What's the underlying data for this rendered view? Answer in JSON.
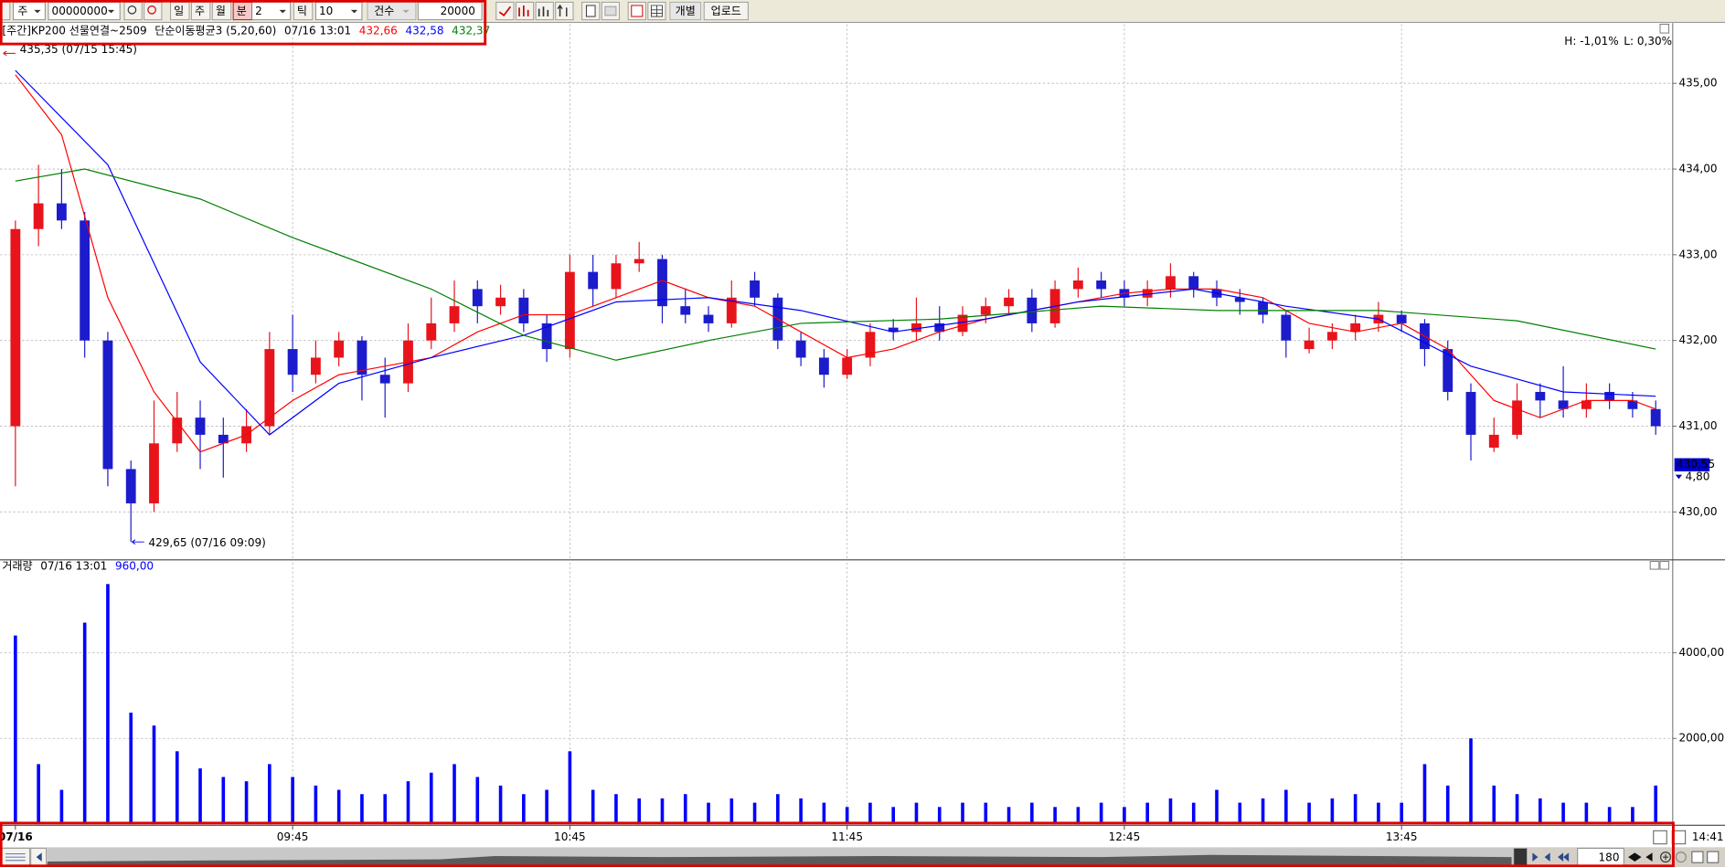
{
  "toolbar": {
    "market": "주",
    "code": "00000000",
    "periods": [
      "일",
      "주",
      "월",
      "분"
    ],
    "interval": 2,
    "tick_label": "틱",
    "tick_count": 10,
    "count_label": "건수",
    "count": 20000,
    "buttons": [
      "개별",
      "업로드"
    ]
  },
  "chart_data": [
    {
      "type": "candlestick",
      "title": "[주간]KP200 선물연결~2509",
      "indicator": "단순이동평균3 (5,20,60)",
      "time": "07/16 13:01",
      "categories": [
        "07/16",
        null,
        null,
        null,
        null,
        null,
        null,
        null,
        null,
        null,
        null,
        null,
        "09:45",
        null,
        null,
        null,
        null,
        null,
        null,
        null,
        null,
        null,
        null,
        null,
        "10:45",
        null,
        null,
        null,
        null,
        null,
        null,
        null,
        null,
        null,
        null,
        null,
        "11:45",
        null,
        null,
        null,
        null,
        null,
        null,
        null,
        null,
        null,
        null,
        null,
        "12:45",
        null,
        null,
        null,
        null,
        null,
        null,
        null,
        null,
        null,
        null,
        null,
        "13:45",
        null,
        null,
        null,
        null,
        null,
        null,
        null,
        null,
        null,
        null,
        null
      ],
      "ohlc": [
        [
          431.0,
          433.4,
          430.3,
          433.3
        ],
        [
          433.3,
          434.05,
          433.1,
          433.6
        ],
        [
          433.6,
          434.0,
          433.3,
          433.4
        ],
        [
          433.4,
          433.5,
          431.8,
          432.0
        ],
        [
          432.0,
          432.1,
          430.3,
          430.5
        ],
        [
          430.5,
          430.6,
          429.65,
          430.1
        ],
        [
          430.1,
          431.3,
          430.0,
          430.8
        ],
        [
          430.8,
          431.4,
          430.7,
          431.1
        ],
        [
          431.1,
          431.3,
          430.5,
          430.9
        ],
        [
          430.9,
          431.1,
          430.4,
          430.8
        ],
        [
          430.8,
          431.2,
          430.7,
          431.0
        ],
        [
          431.0,
          432.1,
          430.9,
          431.9
        ],
        [
          431.9,
          432.3,
          431.4,
          431.6
        ],
        [
          431.6,
          432.0,
          431.5,
          431.8
        ],
        [
          431.8,
          432.1,
          431.7,
          432.0
        ],
        [
          432.0,
          432.05,
          431.3,
          431.6
        ],
        [
          431.6,
          431.8,
          431.1,
          431.5
        ],
        [
          431.5,
          432.2,
          431.4,
          432.0
        ],
        [
          432.0,
          432.5,
          431.9,
          432.2
        ],
        [
          432.2,
          432.7,
          432.1,
          432.4
        ],
        [
          432.6,
          432.7,
          432.2,
          432.4
        ],
        [
          432.4,
          432.65,
          432.3,
          432.5
        ],
        [
          432.5,
          432.6,
          432.1,
          432.2
        ],
        [
          432.2,
          432.3,
          431.75,
          431.9
        ],
        [
          431.9,
          433.0,
          431.8,
          432.8
        ],
        [
          432.8,
          433.0,
          432.4,
          432.6
        ],
        [
          432.6,
          433.0,
          432.5,
          432.9
        ],
        [
          432.9,
          433.15,
          432.8,
          432.95
        ],
        [
          432.95,
          433.0,
          432.2,
          432.4
        ],
        [
          432.4,
          432.6,
          432.2,
          432.3
        ],
        [
          432.3,
          432.4,
          432.1,
          432.2
        ],
        [
          432.2,
          432.7,
          432.15,
          432.5
        ],
        [
          432.7,
          432.8,
          432.4,
          432.5
        ],
        [
          432.5,
          432.55,
          431.9,
          432.0
        ],
        [
          432.0,
          432.1,
          431.7,
          431.8
        ],
        [
          431.8,
          431.9,
          431.45,
          431.6
        ],
        [
          431.6,
          431.9,
          431.55,
          431.8
        ],
        [
          431.8,
          432.2,
          431.7,
          432.1
        ],
        [
          432.15,
          432.25,
          432.0,
          432.1
        ],
        [
          432.1,
          432.5,
          432.0,
          432.2
        ],
        [
          432.2,
          432.4,
          432.0,
          432.1
        ],
        [
          432.1,
          432.4,
          432.05,
          432.3
        ],
        [
          432.3,
          432.5,
          432.2,
          432.4
        ],
        [
          432.4,
          432.6,
          432.3,
          432.5
        ],
        [
          432.5,
          432.6,
          432.1,
          432.2
        ],
        [
          432.2,
          432.7,
          432.15,
          432.6
        ],
        [
          432.6,
          432.85,
          432.5,
          432.7
        ],
        [
          432.7,
          432.8,
          432.5,
          432.6
        ],
        [
          432.6,
          432.7,
          432.4,
          432.5
        ],
        [
          432.5,
          432.7,
          432.4,
          432.6
        ],
        [
          432.6,
          432.9,
          432.5,
          432.75
        ],
        [
          432.75,
          432.8,
          432.5,
          432.6
        ],
        [
          432.6,
          432.7,
          432.4,
          432.5
        ],
        [
          432.5,
          432.6,
          432.3,
          432.45
        ],
        [
          432.45,
          432.5,
          432.2,
          432.3
        ],
        [
          432.3,
          432.35,
          431.8,
          432.0
        ],
        [
          431.9,
          432.15,
          431.85,
          432.0
        ],
        [
          432.0,
          432.2,
          431.9,
          432.1
        ],
        [
          432.1,
          432.3,
          432.0,
          432.2
        ],
        [
          432.2,
          432.45,
          432.1,
          432.3
        ],
        [
          432.3,
          432.35,
          432.1,
          432.2
        ],
        [
          432.2,
          432.25,
          431.7,
          431.9
        ],
        [
          431.9,
          432.0,
          431.3,
          431.4
        ],
        [
          431.4,
          431.5,
          430.6,
          430.9
        ],
        [
          430.75,
          431.1,
          430.7,
          430.9
        ],
        [
          430.9,
          431.5,
          430.85,
          431.3
        ],
        [
          431.4,
          431.5,
          431.1,
          431.3
        ],
        [
          431.3,
          431.7,
          431.1,
          431.2
        ],
        [
          431.2,
          431.5,
          431.1,
          431.3
        ],
        [
          431.4,
          431.5,
          431.2,
          431.3
        ],
        [
          431.3,
          431.4,
          431.1,
          431.2
        ],
        [
          431.2,
          431.3,
          430.9,
          431.0
        ]
      ],
      "up_color": "#e8141c",
      "down_color": "#1c1ccc",
      "series": [
        {
          "color": "#ff0000",
          "last": {
            "value": 432.66,
            "label": "432,66"
          },
          "x": [
            0,
            2,
            4,
            6,
            8,
            10,
            12,
            14,
            16,
            18,
            20,
            22,
            24,
            26,
            28,
            30,
            32,
            34,
            36,
            38,
            40,
            42,
            44,
            46,
            48,
            50,
            52,
            54,
            56,
            58,
            60,
            62,
            64,
            66,
            68,
            70,
            71
          ],
          "values": [
            435.1,
            434.4,
            432.5,
            431.4,
            430.7,
            430.9,
            431.3,
            431.6,
            431.7,
            431.8,
            432.1,
            432.3,
            432.3,
            432.5,
            432.7,
            432.5,
            432.4,
            432.1,
            431.8,
            431.9,
            432.1,
            432.25,
            432.35,
            432.45,
            432.55,
            432.6,
            432.6,
            432.5,
            432.2,
            432.1,
            432.2,
            431.9,
            431.3,
            431.1,
            431.3,
            431.3,
            431.2
          ]
        },
        {
          "color": "#0000ff",
          "last": {
            "value": 432.58,
            "label": "432,58"
          },
          "x": [
            0,
            4,
            8,
            11,
            14,
            18,
            22,
            26,
            30,
            34,
            38,
            42,
            46,
            51,
            55,
            59,
            63,
            67,
            71
          ],
          "values": [
            435.15,
            434.05,
            431.75,
            430.9,
            431.5,
            431.8,
            432.06,
            432.45,
            432.5,
            432.35,
            432.1,
            432.25,
            432.45,
            432.6,
            432.4,
            432.25,
            431.7,
            431.4,
            431.35
          ]
        },
        {
          "color": "#008000",
          "last": {
            "value": 432.37,
            "label": "432,37"
          },
          "x": [
            0,
            3,
            8,
            12,
            18,
            22,
            26,
            30,
            34,
            40,
            47,
            52,
            59,
            65,
            71
          ],
          "values": [
            433.86,
            434.0,
            433.65,
            433.2,
            432.6,
            432.06,
            431.77,
            432.0,
            432.2,
            432.25,
            432.4,
            432.35,
            432.35,
            432.23,
            431.9
          ]
        }
      ],
      "ylim": [
        429.46,
        435.69
      ],
      "yticks": [
        {
          "value": 430,
          "label": "430,00"
        },
        {
          "value": 431,
          "label": "431,00"
        },
        {
          "value": 432,
          "label": "432,00"
        },
        {
          "value": 433,
          "label": "433,00"
        },
        {
          "value": 434,
          "label": "434,00"
        },
        {
          "value": 435,
          "label": "435,00"
        }
      ],
      "grid": true,
      "high_change": "H: -1,01%",
      "low_change": "L: 0,30%",
      "annotations": [
        {
          "value": 435.35,
          "label": "435,35 (07/15 15:45)"
        },
        {
          "value": 429.65,
          "label": "429,65 (07/16 09:09)"
        }
      ],
      "last_price": {
        "value": 430.55,
        "label": "430,55"
      },
      "change": {
        "value": 4.8,
        "label": "4,80"
      }
    },
    {
      "type": "bar",
      "title": "거래량",
      "time": "07/16 13:01",
      "last": {
        "value": 960,
        "label": "960,00"
      },
      "color": "#0000ff",
      "values": [
        4400,
        1400,
        800,
        4700,
        5600,
        2600,
        2300,
        1700,
        1300,
        1100,
        1000,
        1400,
        1100,
        900,
        800,
        700,
        700,
        1000,
        1200,
        1400,
        1100,
        900,
        700,
        800,
        1700,
        800,
        700,
        600,
        600,
        700,
        500,
        600,
        500,
        700,
        600,
        500,
        400,
        500,
        400,
        500,
        400,
        500,
        500,
        400,
        500,
        400,
        400,
        500,
        400,
        500,
        600,
        500,
        800,
        500,
        600,
        800,
        500,
        600,
        700,
        500,
        500,
        1400,
        900,
        2000,
        900,
        700,
        600,
        500,
        500,
        400,
        400,
        900
      ],
      "ylim": [
        0,
        6100
      ],
      "yticks": [
        {
          "value": 2000,
          "label": "2000,00"
        },
        {
          "value": 4000,
          "label": "4000,00"
        }
      ]
    }
  ],
  "footer": {
    "time_end": "14:41",
    "zoom": 180
  }
}
